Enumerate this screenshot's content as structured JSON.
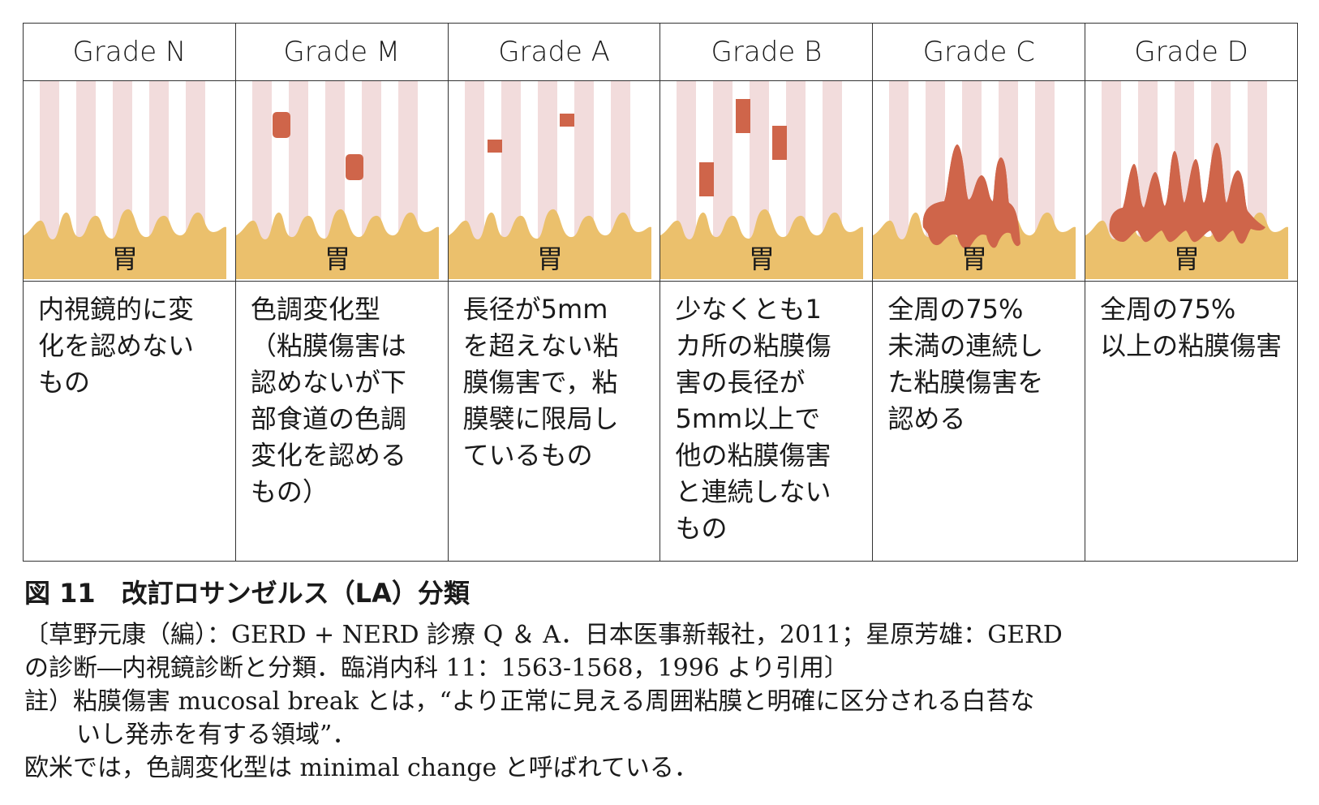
{
  "grades": [
    {
      "title": "Grade N",
      "stomach": "胃",
      "desc": "内視鏡的に変\n化を認めない\nもの",
      "lesion": "none"
    },
    {
      "title": "Grade M",
      "stomach": "胃",
      "desc": "色調変化型\n（粘膜傷害は\n認めないが下\n部食道の色調\n変化を認める\nもの）",
      "lesion": "color-change"
    },
    {
      "title": "Grade A",
      "stomach": "胃",
      "desc": "長径が5mm\nを超えない粘\n膜傷害で，粘\n膜襞に限局し\nているもの",
      "lesion": "small-breaks"
    },
    {
      "title": "Grade B",
      "stomach": "胃",
      "desc": "少なくとも1\nカ所の粘膜傷\n害の長径が\n5mm以上で\n他の粘膜傷害\nと連続しない\nもの",
      "lesion": "large-breaks"
    },
    {
      "title": "Grade C",
      "stomach": "胃",
      "desc": "全周の75%\n未満の連続し\nた粘膜傷害を\n認める",
      "lesion": "continuous-partial"
    },
    {
      "title": "Grade D",
      "stomach": "胃",
      "desc": "全周の75%\n以上の粘膜傷害",
      "lesion": "continuous-extensive"
    }
  ],
  "colors": {
    "stripe": "#f2dcdc",
    "stomach": "#ebc06c",
    "lesion": "#cf654a",
    "border": "#333333"
  },
  "caption": "図 11　改訂ロサンゼルス（LA）分類",
  "notes": {
    "source_line1": "〔草野元康（編）：GERD + NERD 診療 Q ＆ A．日本医事新報社，2011；星原芳雄：GERD",
    "source_line2": "の診断―内視鏡診断と分類．臨消内科 11：1563-1568，1996 より引用〕",
    "note_line1": "註）粘膜傷害 mucosal break とは，“より正常に見える周囲粘膜と明確に区分される白苔な",
    "note_line2": "いし発赤を有する領域”．",
    "note_line3": "欧米では，色調変化型は minimal change と呼ばれている．"
  }
}
